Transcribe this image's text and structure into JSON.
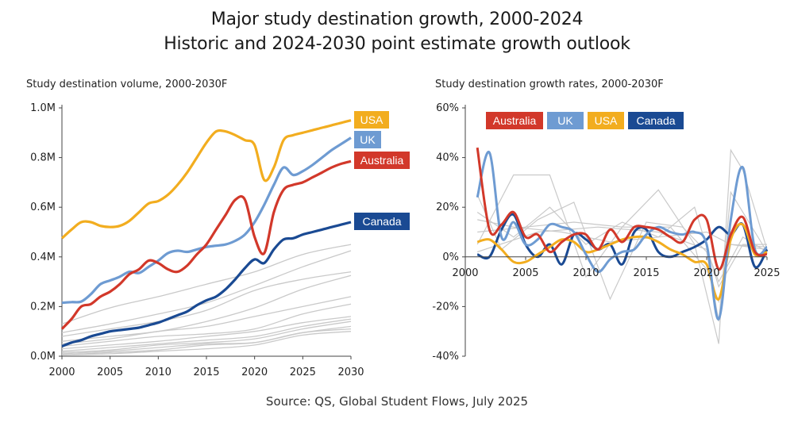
{
  "title_line1": "Major study destination growth, 2000-2024",
  "title_line2": "Historic and 2024-2030 point estimate growth outlook",
  "source": "Source: QS, Global Student Flows, July 2025",
  "colors": {
    "USA": "#f2ad1f",
    "UK": "#6e9bd2",
    "Australia": "#d2382a",
    "Canada": "#1a4a93",
    "other": "#c9c9c9"
  },
  "chart_data": [
    {
      "type": "line",
      "title": "Study destination volume, 2000-2030F",
      "xlim": [
        2000,
        2030
      ],
      "ylim": [
        0,
        1000000
      ],
      "x_ticks": [
        2000,
        2005,
        2010,
        2015,
        2020,
        2025,
        2030
      ],
      "x_tick_labels": [
        "2000",
        "2005",
        "2010",
        "2015",
        "2020",
        "2025",
        "2030"
      ],
      "y_ticks": [
        0,
        200000,
        400000,
        600000,
        800000,
        1000000
      ],
      "y_tick_labels": [
        "0.0M",
        "0.2M",
        "0.4M",
        "0.6M",
        "0.8M",
        "1.0M"
      ],
      "series": [
        {
          "name": "USA",
          "label": "USA",
          "x": [
            2000,
            2001,
            2002,
            2003,
            2004,
            2005,
            2006,
            2007,
            2008,
            2009,
            2010,
            2011,
            2012,
            2013,
            2014,
            2015,
            2016,
            2017,
            2018,
            2019,
            2020,
            2021,
            2022,
            2023,
            2024,
            2025,
            2026,
            2027,
            2028,
            2029,
            2030
          ],
          "values": [
            475000,
            510000,
            540000,
            540000,
            525000,
            520000,
            525000,
            545000,
            580000,
            615000,
            625000,
            650000,
            690000,
            740000,
            800000,
            860000,
            905000,
            905000,
            890000,
            870000,
            850000,
            710000,
            760000,
            870000,
            890000,
            900000,
            910000,
            920000,
            930000,
            940000,
            950000
          ]
        },
        {
          "name": "UK",
          "label": "UK",
          "x": [
            2000,
            2001,
            2002,
            2003,
            2004,
            2005,
            2006,
            2007,
            2008,
            2009,
            2010,
            2011,
            2012,
            2013,
            2014,
            2015,
            2016,
            2017,
            2018,
            2019,
            2020,
            2021,
            2022,
            2023,
            2024,
            2025,
            2026,
            2027,
            2028,
            2029,
            2030
          ],
          "values": [
            215000,
            218000,
            220000,
            250000,
            290000,
            305000,
            320000,
            340000,
            335000,
            360000,
            385000,
            415000,
            425000,
            420000,
            430000,
            440000,
            445000,
            450000,
            465000,
            490000,
            540000,
            610000,
            690000,
            760000,
            730000,
            745000,
            770000,
            800000,
            830000,
            855000,
            880000
          ]
        },
        {
          "name": "Australia",
          "label": "Australia",
          "x": [
            2000,
            2001,
            2002,
            2003,
            2004,
            2005,
            2006,
            2007,
            2008,
            2009,
            2010,
            2011,
            2012,
            2013,
            2014,
            2015,
            2016,
            2017,
            2018,
            2019,
            2020,
            2021,
            2022,
            2023,
            2024,
            2025,
            2026,
            2027,
            2028,
            2029,
            2030
          ],
          "values": [
            110000,
            150000,
            200000,
            210000,
            240000,
            260000,
            290000,
            330000,
            350000,
            385000,
            375000,
            350000,
            340000,
            365000,
            410000,
            450000,
            510000,
            570000,
            630000,
            630000,
            480000,
            415000,
            580000,
            670000,
            690000,
            700000,
            720000,
            740000,
            760000,
            775000,
            785000
          ]
        },
        {
          "name": "Canada",
          "label": "Canada",
          "x": [
            2000,
            2001,
            2002,
            2003,
            2004,
            2005,
            2006,
            2007,
            2008,
            2009,
            2010,
            2011,
            2012,
            2013,
            2014,
            2015,
            2016,
            2017,
            2018,
            2019,
            2020,
            2021,
            2022,
            2023,
            2024,
            2025,
            2026,
            2027,
            2028,
            2029,
            2030
          ],
          "values": [
            40000,
            55000,
            65000,
            80000,
            90000,
            100000,
            105000,
            110000,
            115000,
            125000,
            135000,
            150000,
            165000,
            180000,
            205000,
            225000,
            240000,
            270000,
            310000,
            355000,
            390000,
            375000,
            430000,
            470000,
            475000,
            490000,
            500000,
            510000,
            520000,
            530000,
            540000
          ]
        }
      ],
      "other_series": [
        {
          "x": [
            2000,
            2005,
            2010,
            2015,
            2020,
            2025,
            2030
          ],
          "values": [
            130000,
            195000,
            240000,
            290000,
            340000,
            410000,
            450000
          ]
        },
        {
          "x": [
            2000,
            2005,
            2010,
            2015,
            2020,
            2025,
            2030
          ],
          "values": [
            95000,
            130000,
            170000,
            215000,
            285000,
            360000,
            425000
          ]
        },
        {
          "x": [
            2000,
            2005,
            2010,
            2015,
            2020,
            2025,
            2030
          ],
          "values": [
            80000,
            110000,
            140000,
            185000,
            265000,
            310000,
            340000
          ]
        },
        {
          "x": [
            2000,
            2005,
            2010,
            2015,
            2020,
            2025,
            2030
          ],
          "values": [
            60000,
            80000,
            100000,
            140000,
            195000,
            270000,
            325000
          ]
        },
        {
          "x": [
            2000,
            2005,
            2010,
            2015,
            2020,
            2025,
            2030
          ],
          "values": [
            50000,
            70000,
            100000,
            120000,
            160000,
            200000,
            240000
          ]
        },
        {
          "x": [
            2000,
            2005,
            2010,
            2015,
            2020,
            2025,
            2030
          ],
          "values": [
            40000,
            60000,
            80000,
            90000,
            110000,
            170000,
            210000
          ]
        },
        {
          "x": [
            2000,
            2005,
            2010,
            2015,
            2020,
            2025,
            2030
          ],
          "values": [
            30000,
            45000,
            60000,
            80000,
            100000,
            135000,
            160000
          ]
        },
        {
          "x": [
            2000,
            2005,
            2010,
            2015,
            2020,
            2025,
            2030
          ],
          "values": [
            20000,
            35000,
            50000,
            65000,
            80000,
            120000,
            150000
          ]
        },
        {
          "x": [
            2000,
            2005,
            2010,
            2015,
            2020,
            2025,
            2030
          ],
          "values": [
            15000,
            25000,
            45000,
            55000,
            70000,
            110000,
            140000
          ]
        },
        {
          "x": [
            2000,
            2005,
            2010,
            2015,
            2020,
            2025,
            2030
          ],
          "values": [
            10000,
            20000,
            35000,
            50000,
            55000,
            95000,
            120000
          ]
        },
        {
          "x": [
            2000,
            2005,
            2010,
            2015,
            2020,
            2025,
            2030
          ],
          "values": [
            5000,
            15000,
            25000,
            45000,
            55000,
            95000,
            110000
          ]
        },
        {
          "x": [
            2000,
            2005,
            2010,
            2015,
            2020,
            2025,
            2030
          ],
          "values": [
            5000,
            10000,
            20000,
            30000,
            45000,
            85000,
            100000
          ]
        }
      ]
    },
    {
      "type": "line",
      "title": "Study destination growth rates, 2000-2030F",
      "xlim": [
        2000,
        2025
      ],
      "ylim": [
        -0.4,
        0.6
      ],
      "x_ticks": [
        2000,
        2005,
        2010,
        2015,
        2020,
        2025
      ],
      "x_tick_labels": [
        "2000",
        "2005",
        "2010",
        "2015",
        "2020",
        "2025"
      ],
      "y_ticks": [
        -0.4,
        -0.2,
        0,
        0.2,
        0.4,
        0.6
      ],
      "y_tick_labels": [
        "-40%",
        "-20%",
        "0%",
        "20%",
        "40%",
        "60%"
      ],
      "legend": [
        "Australia",
        "UK",
        "USA",
        "Canada"
      ],
      "series": [
        {
          "name": "Australia",
          "x": [
            2001,
            2002,
            2003,
            2004,
            2005,
            2006,
            2007,
            2008,
            2009,
            2010,
            2011,
            2012,
            2013,
            2014,
            2015,
            2016,
            2017,
            2018,
            2019,
            2020,
            2021,
            2022,
            2023,
            2024,
            2025
          ],
          "values": [
            0.44,
            0.11,
            0.13,
            0.18,
            0.08,
            0.09,
            0.02,
            0.06,
            0.09,
            0.09,
            0.03,
            0.11,
            0.06,
            0.12,
            0.12,
            0.11,
            0.08,
            0.06,
            0.15,
            0.15,
            -0.05,
            0.09,
            0.16,
            0.02,
            0.01
          ]
        },
        {
          "name": "UK",
          "x": [
            2001,
            2002,
            2003,
            2004,
            2005,
            2006,
            2007,
            2008,
            2009,
            2010,
            2011,
            2012,
            2013,
            2014,
            2015,
            2016,
            2017,
            2018,
            2019,
            2020,
            2021,
            2022,
            2023,
            2024,
            2025
          ],
          "values": [
            0.24,
            0.42,
            0.08,
            0.14,
            0.05,
            0.07,
            0.13,
            0.12,
            0.1,
            0.01,
            -0.06,
            -0.01,
            0.02,
            0.03,
            0.09,
            0.12,
            0.1,
            0.09,
            0.1,
            0.05,
            -0.25,
            0.15,
            0.36,
            0.03,
            0.04
          ]
        },
        {
          "name": "USA",
          "x": [
            2001,
            2002,
            2003,
            2004,
            2005,
            2006,
            2007,
            2008,
            2009,
            2010,
            2011,
            2012,
            2013,
            2014,
            2015,
            2016,
            2017,
            2018,
            2019,
            2020,
            2021,
            2022,
            2023,
            2024,
            2025
          ],
          "values": [
            0.06,
            0.07,
            0.03,
            -0.02,
            -0.02,
            0.01,
            0.04,
            0.07,
            0.06,
            0.02,
            0.03,
            0.05,
            0.07,
            0.08,
            0.08,
            0.06,
            0.03,
            0.01,
            -0.02,
            -0.03,
            -0.17,
            0.07,
            0.13,
            0.01,
            0.02
          ]
        },
        {
          "name": "Canada",
          "x": [
            2001,
            2002,
            2003,
            2004,
            2005,
            2006,
            2007,
            2008,
            2009,
            2010,
            2011,
            2012,
            2013,
            2014,
            2015,
            2016,
            2017,
            2018,
            2019,
            2020,
            2021,
            2022,
            2023,
            2024,
            2025
          ],
          "values": [
            0.01,
            0.0,
            0.11,
            0.17,
            0.05,
            0.0,
            0.05,
            -0.03,
            0.09,
            0.07,
            0.03,
            0.05,
            -0.03,
            0.1,
            0.11,
            0.02,
            0.0,
            0.02,
            0.04,
            0.07,
            0.12,
            0.09,
            0.13,
            -0.04,
            0.03
          ]
        }
      ],
      "other_series": [
        {
          "x": [
            2001,
            2004,
            2007,
            2010,
            2013,
            2016,
            2019,
            2021,
            2022,
            2023,
            2025
          ],
          "values": [
            0.05,
            0.33,
            0.33,
            -0.08,
            0.12,
            0.27,
            0.05,
            -0.35,
            0.43,
            0.35,
            0.03
          ]
        },
        {
          "x": [
            2001,
            2003,
            2006,
            2009,
            2012,
            2015,
            2018,
            2020,
            2021,
            2022,
            2024,
            2025
          ],
          "values": [
            0.25,
            0.03,
            0.15,
            0.22,
            -0.17,
            0.14,
            0.12,
            0.02,
            -0.26,
            0.26,
            0.1,
            0.02
          ]
        },
        {
          "x": [
            2001,
            2004,
            2007,
            2010,
            2013,
            2016,
            2019,
            2021,
            2023,
            2025
          ],
          "values": [
            0.18,
            0.08,
            0.2,
            0.05,
            0.14,
            0.08,
            0.2,
            -0.12,
            0.05,
            0.05
          ]
        },
        {
          "x": [
            2001,
            2005,
            2009,
            2013,
            2017,
            2020,
            2021,
            2022,
            2025
          ],
          "values": [
            0.1,
            0.12,
            0.14,
            0.12,
            0.12,
            -0.05,
            -0.18,
            0.05,
            0.03
          ]
        },
        {
          "x": [
            2001,
            2004,
            2008,
            2012,
            2016,
            2020,
            2022,
            2025
          ],
          "values": [
            0.15,
            0.12,
            0.1,
            0.06,
            0.08,
            0.1,
            0.05,
            0.04
          ]
        },
        {
          "x": [
            2001,
            2006,
            2011,
            2016,
            2020,
            2021,
            2023,
            2025
          ],
          "values": [
            0.02,
            0.1,
            0.12,
            0.1,
            0.03,
            -0.1,
            0.08,
            0.02
          ]
        }
      ]
    }
  ]
}
